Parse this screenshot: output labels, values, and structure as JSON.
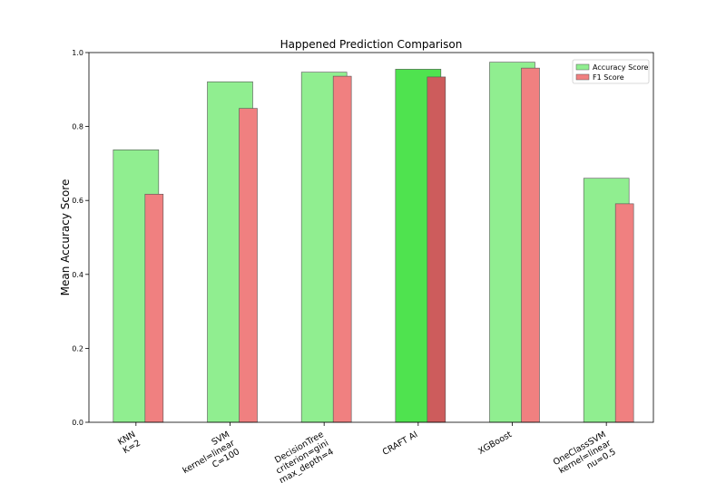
{
  "chart_data": {
    "type": "bar",
    "title": "Happened Prediction Comparison",
    "xlabel": "",
    "ylabel": "Mean Accuracy Score",
    "ylim": [
      0,
      1.0
    ],
    "yticks": [
      "0.0",
      "0.2",
      "0.4",
      "0.6",
      "0.8",
      "1.0"
    ],
    "ytick_values": [
      0,
      0.2,
      0.4,
      0.6,
      0.8,
      1.0
    ],
    "legend_position": "top-right",
    "grid": false,
    "categories": [
      [
        "KNN",
        "K=2"
      ],
      [
        "SVM",
        "kernel=linear",
        "C=100"
      ],
      [
        "DecisionTree",
        "criterion=gini",
        "max_depth=4"
      ],
      [
        "CRAFT AI"
      ],
      [
        "XGBoost"
      ],
      [
        "OneClassSVM",
        "kernel=linear",
        "nu=0.5"
      ]
    ],
    "highlight_index": 3,
    "series": [
      {
        "name": "Accuracy Score",
        "color": "#90ee90",
        "highlight_color": "#4fe34f",
        "values": [
          0.737,
          0.921,
          0.947,
          0.955,
          0.974,
          0.66
        ]
      },
      {
        "name": "F1 Score",
        "color": "#f08080",
        "highlight_color": "#cd5c5c",
        "values": [
          0.617,
          0.849,
          0.936,
          0.934,
          0.958,
          0.591
        ]
      }
    ]
  }
}
